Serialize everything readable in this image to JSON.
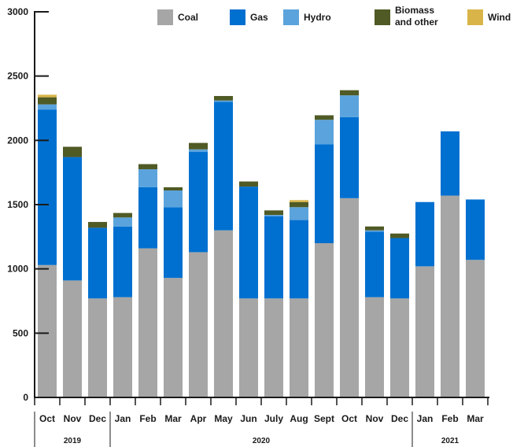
{
  "chart_data": {
    "type": "bar",
    "stacked": true,
    "title": "",
    "xlabel": "",
    "ylabel": "",
    "ylim": [
      0,
      3000
    ],
    "yticks": [
      0,
      500,
      1000,
      1500,
      2000,
      2500,
      3000
    ],
    "grid": false,
    "legend_position": "top-right",
    "categories": [
      "Oct",
      "Nov",
      "Dec",
      "Jan",
      "Feb",
      "Mar",
      "Apr",
      "May",
      "Jun",
      "July",
      "Aug",
      "Sept",
      "Oct",
      "Nov",
      "Dec",
      "Jan",
      "Feb",
      "Mar"
    ],
    "year_groups": [
      {
        "label": "2019",
        "start": 0,
        "end": 2
      },
      {
        "label": "2020",
        "start": 3,
        "end": 14
      },
      {
        "label": "2021",
        "start": 15,
        "end": 17
      }
    ],
    "series": [
      {
        "name": "Coal",
        "color": "#a6a6a6",
        "values": [
          1030,
          910,
          770,
          780,
          1160,
          930,
          1130,
          1300,
          770,
          770,
          770,
          1200,
          1550,
          780,
          770,
          1020,
          1570,
          1070
        ]
      },
      {
        "name": "Gas",
        "color": "#0070d0",
        "values": [
          1210,
          960,
          550,
          550,
          475,
          550,
          780,
          1000,
          870,
          640,
          610,
          770,
          630,
          510,
          470,
          500,
          500,
          470
        ]
      },
      {
        "name": "Hydro",
        "color": "#5ba3dc",
        "values": [
          40,
          0,
          0,
          70,
          140,
          130,
          20,
          10,
          0,
          10,
          100,
          190,
          170,
          10,
          0,
          0,
          0,
          0
        ]
      },
      {
        "name": "Biomass\nand other",
        "color": "#4f5a25",
        "values": [
          55,
          80,
          45,
          35,
          40,
          25,
          50,
          35,
          40,
          35,
          40,
          35,
          40,
          30,
          35,
          0,
          0,
          0
        ]
      },
      {
        "name": "Wind",
        "color": "#d9b549",
        "values": [
          20,
          0,
          0,
          0,
          0,
          0,
          0,
          0,
          0,
          0,
          15,
          0,
          0,
          0,
          0,
          0,
          0,
          0
        ]
      }
    ]
  }
}
